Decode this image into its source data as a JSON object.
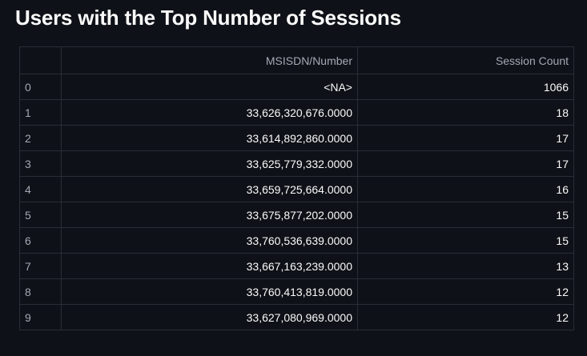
{
  "page": {
    "title": "Users with the Top Number of Sessions"
  },
  "table": {
    "columns": {
      "index": "",
      "msisdn": "MSISDN/Number",
      "session_count": "Session Count"
    },
    "rows": [
      {
        "index": "0",
        "msisdn": "<NA>",
        "session_count": "1066"
      },
      {
        "index": "1",
        "msisdn": "33,626,320,676.0000",
        "session_count": "18"
      },
      {
        "index": "2",
        "msisdn": "33,614,892,860.0000",
        "session_count": "17"
      },
      {
        "index": "3",
        "msisdn": "33,625,779,332.0000",
        "session_count": "17"
      },
      {
        "index": "4",
        "msisdn": "33,659,725,664.0000",
        "session_count": "16"
      },
      {
        "index": "5",
        "msisdn": "33,675,877,202.0000",
        "session_count": "15"
      },
      {
        "index": "6",
        "msisdn": "33,760,536,639.0000",
        "session_count": "15"
      },
      {
        "index": "7",
        "msisdn": "33,667,163,239.0000",
        "session_count": "13"
      },
      {
        "index": "8",
        "msisdn": "33,760,413,819.0000",
        "session_count": "12"
      },
      {
        "index": "9",
        "msisdn": "33,627,080,969.0000",
        "session_count": "12"
      }
    ]
  },
  "colors": {
    "background": "#0e1117",
    "text": "#fafafa",
    "muted_text": "#a3a8b4",
    "grid_line": "#2a2d36"
  }
}
